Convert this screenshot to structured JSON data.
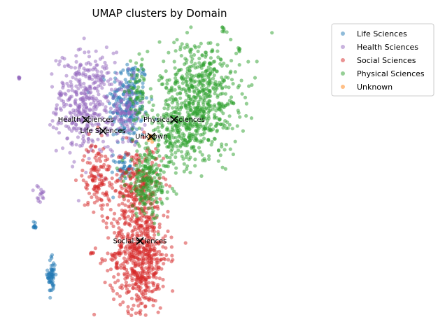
{
  "chart_data": {
    "type": "scatter",
    "title": "UMAP clusters by Domain",
    "xlabel": "",
    "ylabel": "",
    "axes_visible": false,
    "xlim": [
      0,
      10
    ],
    "ylim": [
      0,
      10
    ],
    "legend_position": "top-right",
    "series": [
      {
        "name": "Life Sciences",
        "color": "#1f77b4",
        "clusters": [
          {
            "cx": 3.9,
            "cy": 7.4,
            "sx": 0.35,
            "sy": 0.8,
            "n": 220
          },
          {
            "cx": 3.7,
            "cy": 5.1,
            "sx": 0.15,
            "sy": 0.2,
            "n": 40
          },
          {
            "cx": 1.2,
            "cy": 1.3,
            "sx": 0.07,
            "sy": 0.35,
            "n": 60
          },
          {
            "cx": 0.6,
            "cy": 3.0,
            "sx": 0.04,
            "sy": 0.1,
            "n": 10
          }
        ],
        "centroid": {
          "x": 3.0,
          "y": 6.4,
          "label": "Life Sciences"
        }
      },
      {
        "name": "Health Sciences",
        "color": "#9467bd",
        "clusters": [
          {
            "cx": 2.4,
            "cy": 7.4,
            "sx": 0.5,
            "sy": 0.9,
            "n": 380
          },
          {
            "cx": 3.8,
            "cy": 7.0,
            "sx": 0.3,
            "sy": 0.6,
            "n": 110
          },
          {
            "cx": 0.8,
            "cy": 4.1,
            "sx": 0.1,
            "sy": 0.2,
            "n": 15
          },
          {
            "cx": 0.05,
            "cy": 8.3,
            "sx": 0.02,
            "sy": 0.03,
            "n": 6
          },
          {
            "cx": 1.5,
            "cy": 7.7,
            "sx": 0.05,
            "sy": 0.08,
            "n": 8
          }
        ],
        "centroid": {
          "x": 2.4,
          "y": 6.8,
          "label": "Health Sciences"
        }
      },
      {
        "name": "Social Sciences",
        "color": "#d62728",
        "clusters": [
          {
            "cx": 4.3,
            "cy": 2.0,
            "sx": 0.5,
            "sy": 1.0,
            "n": 600
          },
          {
            "cx": 4.2,
            "cy": 4.5,
            "sx": 0.4,
            "sy": 0.7,
            "n": 230
          },
          {
            "cx": 2.8,
            "cy": 4.8,
            "sx": 0.25,
            "sy": 0.6,
            "n": 130
          },
          {
            "cx": 2.6,
            "cy": 2.1,
            "sx": 0.03,
            "sy": 0.03,
            "n": 5
          }
        ],
        "centroid": {
          "x": 4.3,
          "y": 2.5,
          "label": "Social Sciences"
        }
      },
      {
        "name": "Physical Sciences",
        "color": "#2ca02c",
        "clusters": [
          {
            "cx": 6.4,
            "cy": 7.7,
            "sx": 0.7,
            "sy": 1.0,
            "n": 550
          },
          {
            "cx": 5.8,
            "cy": 6.3,
            "sx": 0.7,
            "sy": 0.55,
            "n": 220
          },
          {
            "cx": 4.6,
            "cy": 4.6,
            "sx": 0.4,
            "sy": 0.6,
            "n": 220
          },
          {
            "cx": 4.2,
            "cy": 7.8,
            "sx": 0.2,
            "sy": 0.5,
            "n": 60
          },
          {
            "cx": 7.2,
            "cy": 10.0,
            "sx": 0.03,
            "sy": 0.04,
            "n": 6
          },
          {
            "cx": 7.8,
            "cy": 9.3,
            "sx": 0.03,
            "sy": 0.03,
            "n": 5
          }
        ],
        "centroid": {
          "x": 5.5,
          "y": 6.8,
          "label": "Physical Sciences"
        }
      },
      {
        "name": "Unknown",
        "color": "#ff7f0e",
        "clusters": [
          {
            "cx": 4.7,
            "cy": 6.15,
            "sx": 0.04,
            "sy": 0.08,
            "n": 6
          }
        ],
        "centroid": {
          "x": 4.7,
          "y": 6.2,
          "label": "Unknown"
        }
      }
    ]
  }
}
